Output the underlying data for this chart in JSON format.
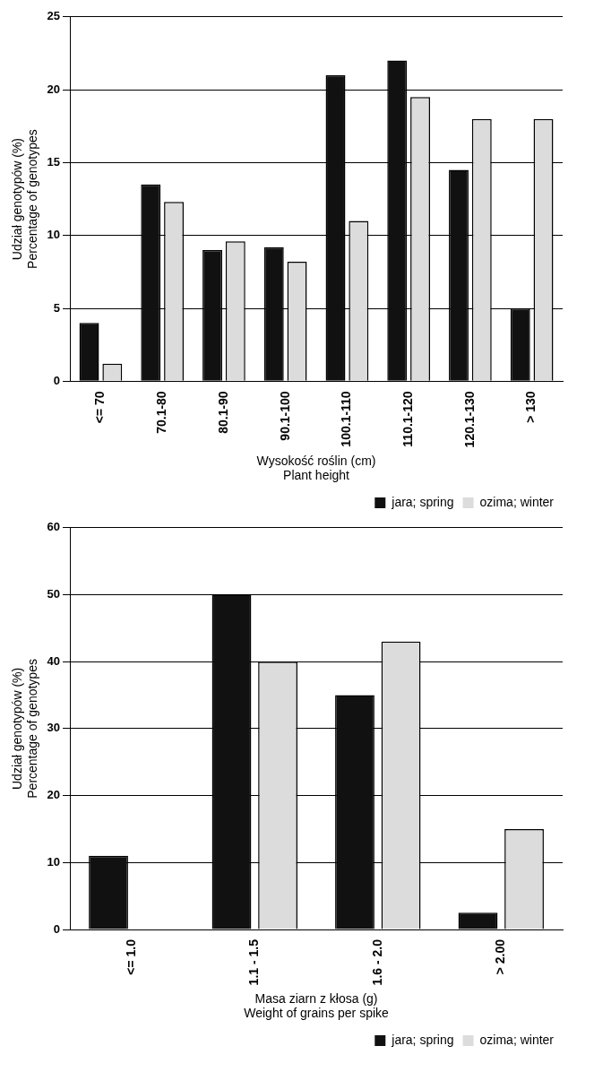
{
  "chart_data": [
    {
      "type": "bar",
      "categories": [
        "<= 70",
        "70.1-80",
        "80.1-90",
        "90.1-100",
        "100.1-110",
        "110.1-120",
        "120.1-130",
        "> 130"
      ],
      "series": [
        {
          "name": "jara; spring",
          "color": "#111111",
          "values": [
            4,
            13.5,
            9,
            9.2,
            21,
            22,
            14.5,
            5
          ]
        },
        {
          "name": "ozima; winter",
          "color": "#dcdcdc",
          "values": [
            1.2,
            12.3,
            9.6,
            8.2,
            11,
            19.5,
            18,
            18
          ]
        }
      ],
      "ylim": [
        0,
        25
      ],
      "yticks": [
        0,
        5,
        10,
        15,
        20,
        25
      ],
      "ylabel": "Udział genotypów (%)\nPercentage of genotypes",
      "xlabel": "Wysokość roślin (cm)\nPlant height",
      "grid": "y",
      "legend": "bottom right"
    },
    {
      "type": "bar",
      "categories": [
        "<= 1.0",
        "1.1 - 1.5",
        "1.6 - 2.0",
        "> 2.00"
      ],
      "series": [
        {
          "name": "jara; spring",
          "color": "#111111",
          "values": [
            11,
            50,
            35,
            2.5
          ]
        },
        {
          "name": "ozima; winter",
          "color": "#dcdcdc",
          "values": [
            0,
            40,
            43,
            15
          ]
        }
      ],
      "ylim": [
        0,
        60
      ],
      "yticks": [
        0,
        10,
        20,
        30,
        40,
        50,
        60
      ],
      "ylabel": "Udział genotypów (%)\nPercentage of genotypes",
      "xlabel": "Masa ziarn z kłosa (g)\nWeight of grains per spike",
      "grid": "y",
      "legend": "bottom right"
    }
  ]
}
